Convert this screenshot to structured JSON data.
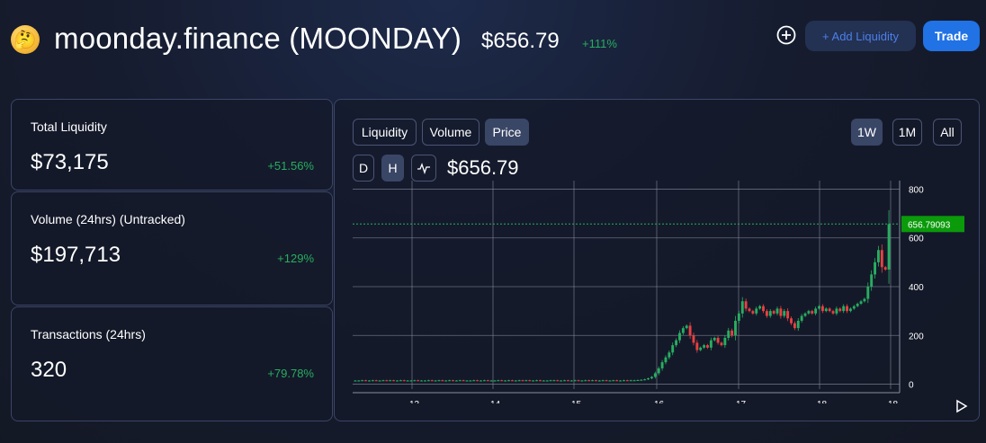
{
  "header": {
    "token_emoji": "🤔",
    "title": "moonday.finance (MOONDAY)",
    "price": "$656.79",
    "change": "+111%",
    "add_liquidity_label": "+ Add Liquidity",
    "trade_label": "Trade"
  },
  "stats": [
    {
      "label": "Total Liquidity",
      "value": "$73,175",
      "change": "+51.56%"
    },
    {
      "label": "Volume (24hrs) (Untracked)",
      "value": "$197,713",
      "change": "+129%"
    },
    {
      "label": "Transactions (24hrs)",
      "value": "320",
      "change": "+79.78%"
    }
  ],
  "chart": {
    "tabs": [
      "Liquidity",
      "Volume",
      "Price"
    ],
    "active_tab": "Price",
    "ranges": [
      "1W",
      "1M",
      "All"
    ],
    "active_range": "1W",
    "intervals": [
      "D",
      "H"
    ],
    "active_interval": "H",
    "current_price": "$656.79",
    "last_price_label": "656.79093"
  },
  "colors": {
    "up": "#27ae60",
    "down": "#e84142",
    "accent": "#2172e5"
  },
  "chart_data": {
    "type": "candlestick",
    "x_ticks": [
      "13",
      "14",
      "15",
      "16",
      "17",
      "18",
      "18"
    ],
    "y_ticks": [
      0,
      200,
      400,
      600,
      800
    ],
    "ylim": [
      -20,
      820
    ],
    "last_price": 656.79093,
    "grid": true,
    "candles_close": [
      15,
      15,
      16,
      15,
      15,
      16,
      15,
      15,
      16,
      15,
      16,
      15,
      15,
      16,
      15,
      15,
      15,
      16,
      15,
      15,
      15,
      16,
      15,
      15,
      16,
      15,
      15,
      16,
      15,
      15,
      16,
      15,
      15,
      15,
      16,
      15,
      15,
      16,
      15,
      15,
      15,
      16,
      15,
      15,
      16,
      15,
      15,
      16,
      15,
      16,
      15,
      15,
      16,
      15,
      15,
      15,
      16,
      16,
      15,
      15,
      16,
      15,
      15,
      16,
      15,
      15,
      16,
      15,
      16,
      15,
      15,
      16,
      15,
      15,
      16,
      15,
      15,
      16,
      15,
      16,
      16,
      17,
      18,
      20,
      24,
      30,
      45,
      65,
      90,
      110,
      130,
      160,
      180,
      210,
      230,
      240,
      200,
      170,
      140,
      150,
      160,
      150,
      180,
      190,
      170,
      160,
      190,
      220,
      200,
      260,
      290,
      340,
      310,
      300,
      290,
      310,
      320,
      300,
      280,
      300,
      290,
      310,
      280,
      300,
      270,
      250,
      230,
      260,
      280,
      290,
      300,
      290,
      310,
      320,
      300,
      310,
      300,
      290,
      310,
      300,
      320,
      300,
      310,
      320,
      330,
      340,
      350,
      400,
      450,
      500,
      550,
      480,
      470,
      656
    ]
  }
}
